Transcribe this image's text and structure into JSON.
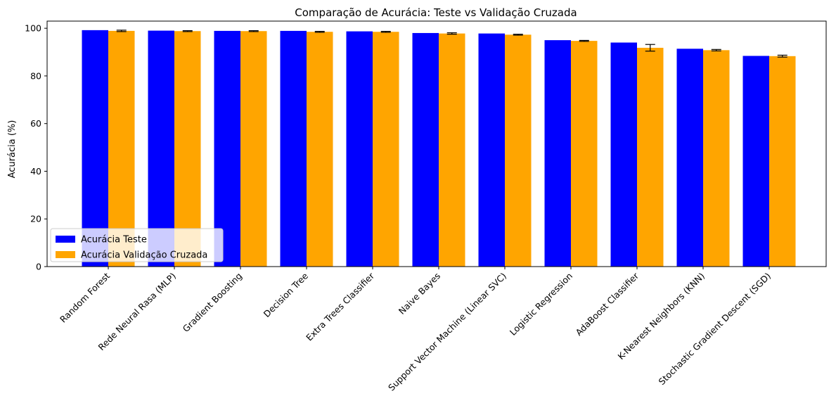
{
  "chart_data": {
    "type": "bar",
    "title": "Comparação de Acurácia: Teste vs Validação Cruzada",
    "xlabel": "",
    "ylabel": "Acurácia (%)",
    "ylim": [
      0,
      103
    ],
    "yticks": [
      0,
      20,
      40,
      60,
      80,
      100
    ],
    "grid": false,
    "legend_position": "lower-left",
    "categories": [
      "Random Forest",
      "Rede Neural Rasa (MLP)",
      "Gradient Boosting",
      "Decision Tree",
      "Extra Trees Classifier",
      "Naive Bayes",
      "Support Vector Machine (Linear SVC)",
      "Logistic Regression",
      "AdaBoost Classifier",
      "K-Nearest Neighbors (KNN)",
      "Stochastic Gradient Descent (SGD)"
    ],
    "series": [
      {
        "name": "Acurácia Teste",
        "color": "#0000ff",
        "values": [
          99.2,
          99.0,
          98.9,
          98.9,
          98.7,
          98.0,
          97.8,
          95.0,
          94.0,
          91.4,
          88.4
        ]
      },
      {
        "name": "Acurácia Validação Cruzada",
        "color": "#ffa500",
        "values": [
          98.9,
          98.8,
          98.8,
          98.5,
          98.5,
          97.8,
          97.3,
          94.7,
          91.8,
          90.8,
          88.3
        ],
        "errors": [
          0.3,
          0.2,
          0.2,
          0.2,
          0.2,
          0.3,
          0.2,
          0.2,
          1.4,
          0.3,
          0.4
        ]
      }
    ]
  }
}
